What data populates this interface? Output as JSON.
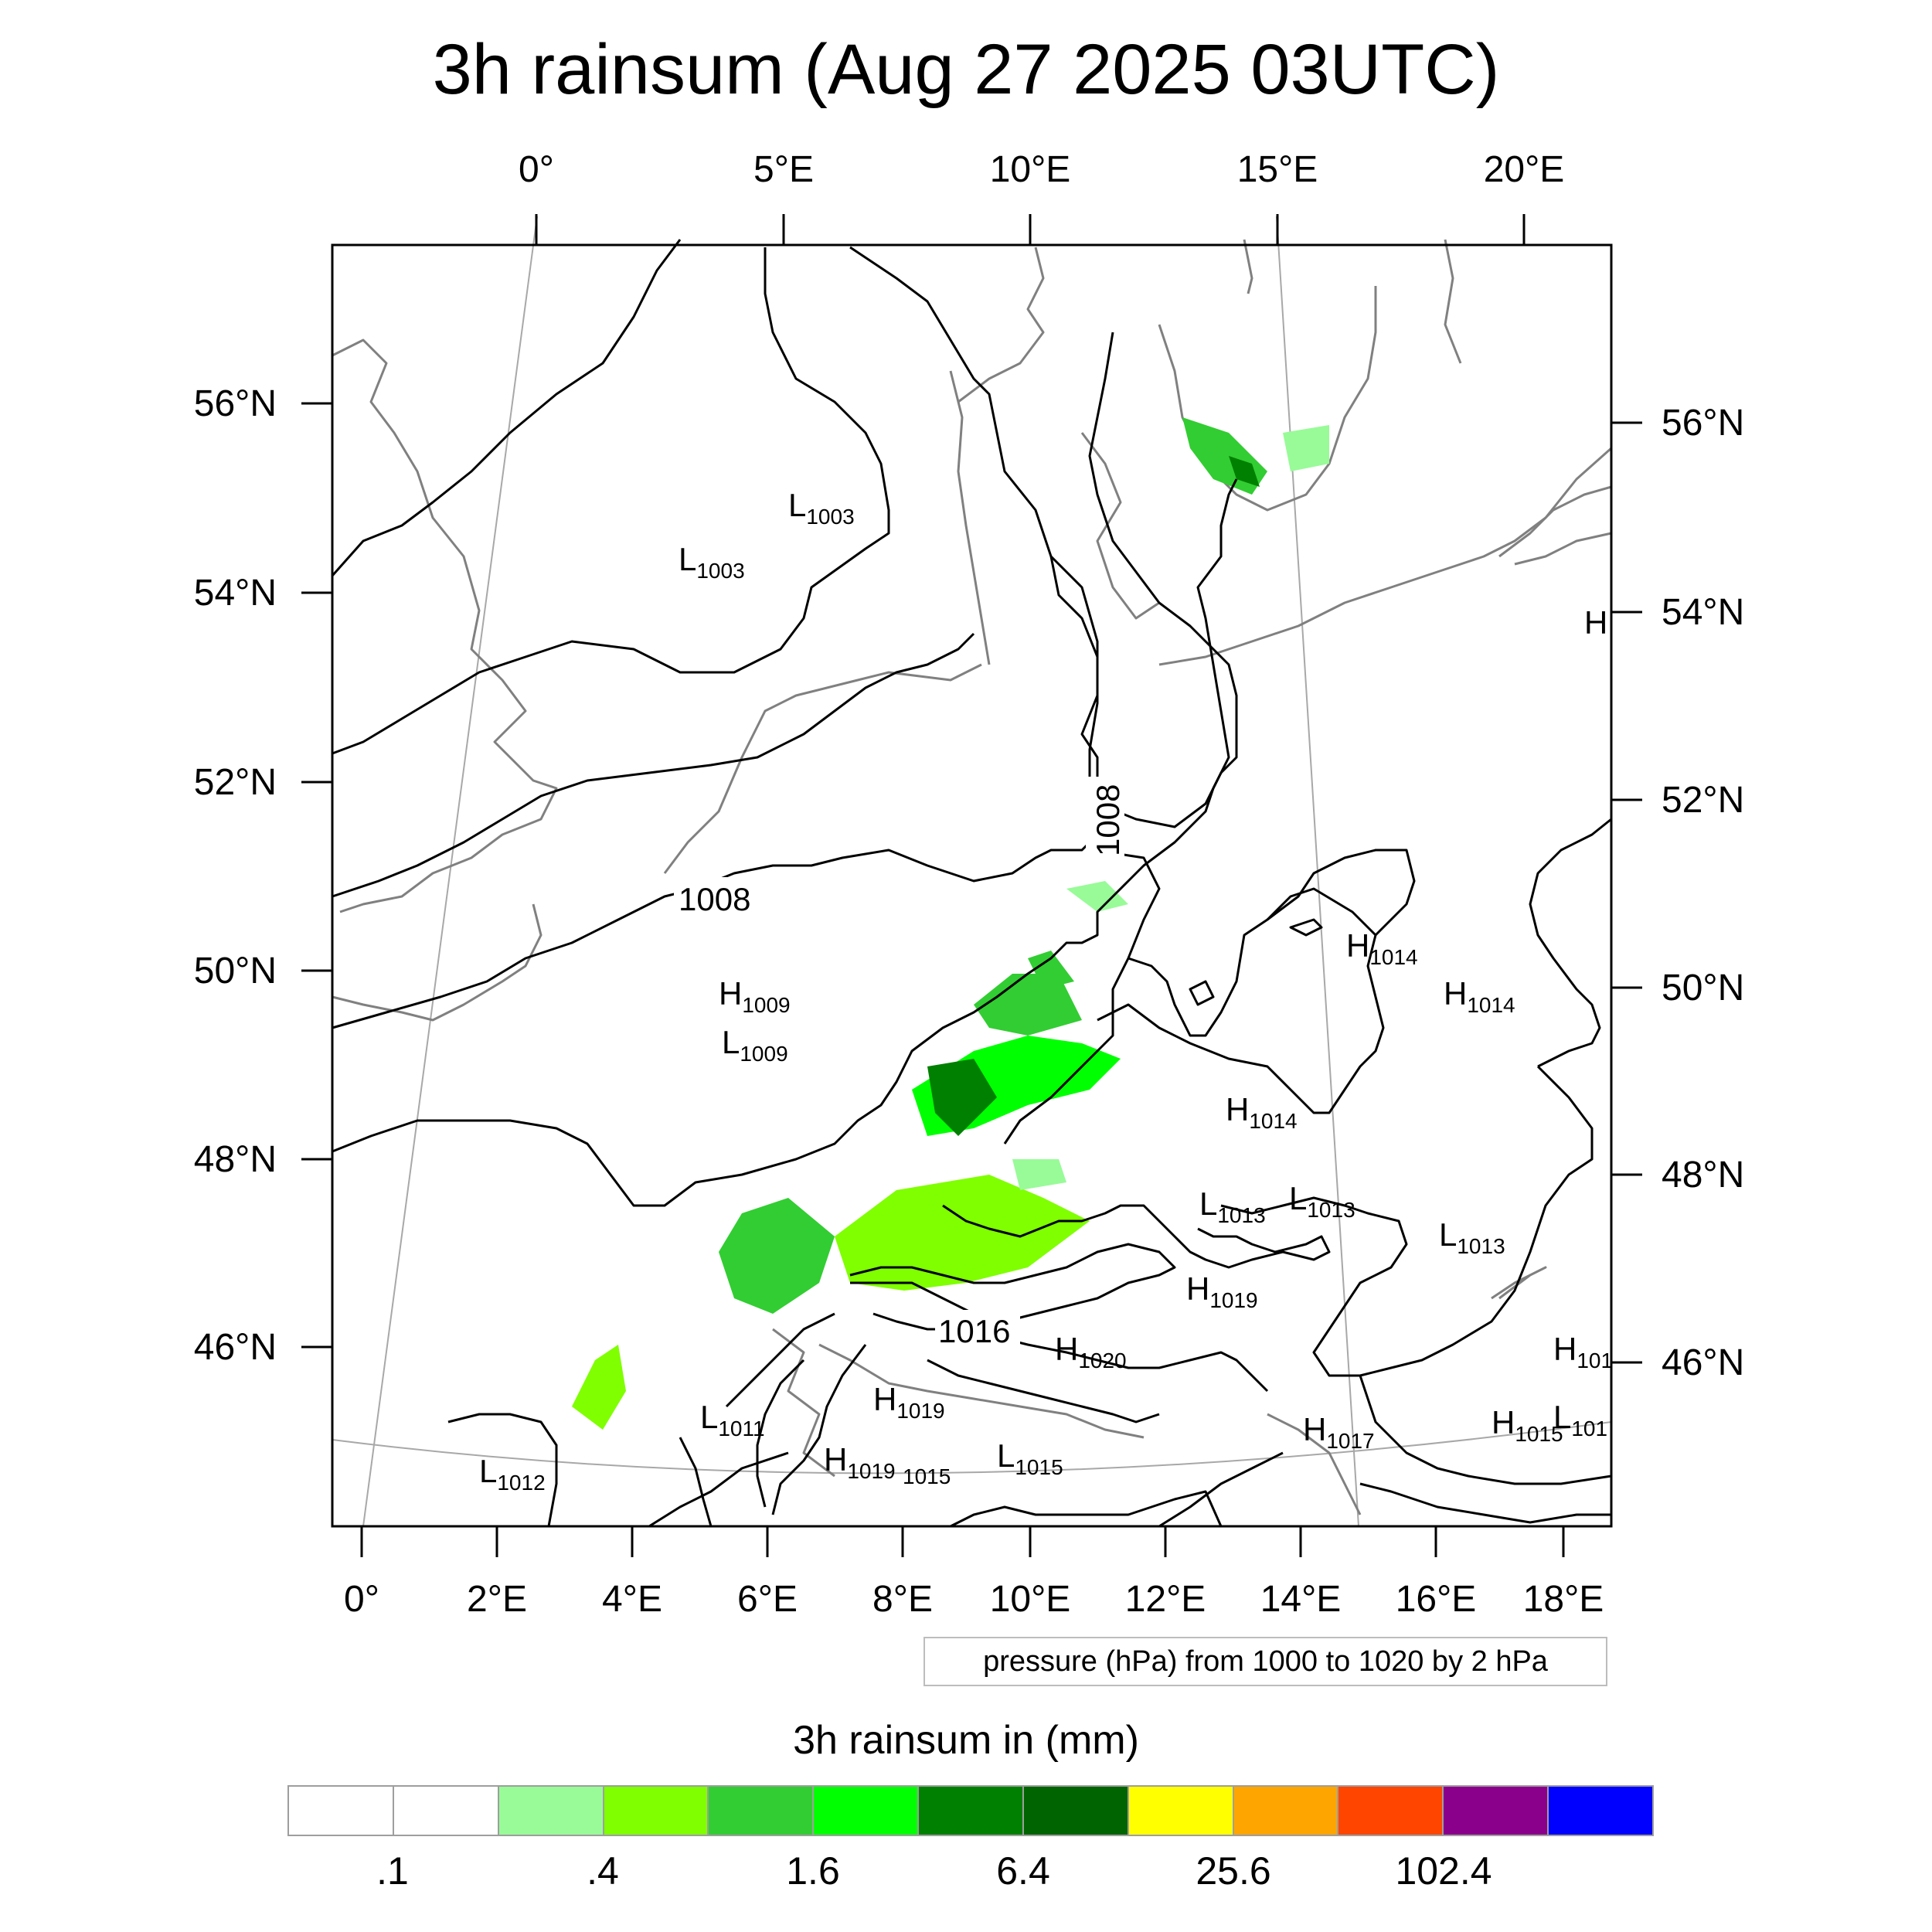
{
  "title": "3h rainsum (Aug 27 2025 03UTC)",
  "map": {
    "top_lon_labels": [
      "0°",
      "5°E",
      "10°E",
      "15°E",
      "20°E"
    ],
    "bottom_lon_labels": [
      "0°",
      "2°E",
      "4°E",
      "6°E",
      "8°E",
      "10°E",
      "12°E",
      "14°E",
      "16°E",
      "18°E"
    ],
    "left_lat_labels": [
      "56°N",
      "54°N",
      "52°N",
      "50°N",
      "48°N",
      "46°N"
    ],
    "right_lat_labels": [
      "56°N",
      "54°N",
      "52°N",
      "50°N",
      "48°N",
      "46°N"
    ],
    "isobar_labels": [
      "1008",
      "1008",
      "1016"
    ],
    "pressure_systems": [
      {
        "type": "L",
        "value": "1003"
      },
      {
        "type": "L",
        "value": "1003"
      },
      {
        "type": "H",
        "value": "1009"
      },
      {
        "type": "L",
        "value": "1009"
      },
      {
        "type": "H",
        "value": "1014"
      },
      {
        "type": "H",
        "value": "1014"
      },
      {
        "type": "H",
        "value": "1014"
      },
      {
        "type": "L",
        "value": "1013"
      },
      {
        "type": "L",
        "value": "1013"
      },
      {
        "type": "L",
        "value": "1013"
      },
      {
        "type": "H",
        "value": "1019"
      },
      {
        "type": "H",
        "value": "1020"
      },
      {
        "type": "H",
        "value": "1019"
      },
      {
        "type": "H",
        "value": "1019"
      },
      {
        "type": "L",
        "value": "1015"
      },
      {
        "type": "H",
        "value": "1017"
      },
      {
        "type": "L",
        "value": "1011"
      },
      {
        "type": "L",
        "value": "1012"
      },
      {
        "type": "H",
        "value": "1015"
      },
      {
        "type": "L",
        "value": "1015"
      },
      {
        "type": "H",
        "value": "101"
      },
      {
        "type": "L",
        "value": "101"
      },
      {
        "type": "H",
        "value": ""
      }
    ],
    "colors": {
      "coastline": "#808080",
      "isobar": "#000000",
      "gridline": "#9e9e9e"
    }
  },
  "pressure_note": "pressure (hPa) from 1000 to 1020 by 2 hPa",
  "legend": {
    "title": "3h rainsum in (mm)",
    "colors": [
      "#ffffff",
      "#ffffff",
      "#98fb98",
      "#7fff00",
      "#32cd32",
      "#00ff00",
      "#008000",
      "#006400",
      "#ffff00",
      "#ffa500",
      "#ff4500",
      "#8b008b",
      "#0000ff"
    ],
    "labels": [
      ".1",
      ".4",
      "1.6",
      "6.4",
      "25.6",
      "102.4"
    ]
  }
}
